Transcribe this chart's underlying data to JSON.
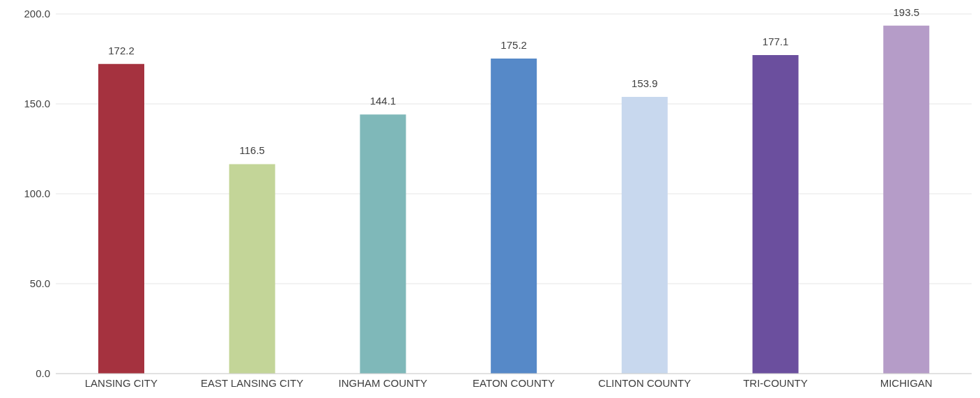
{
  "chart_data": {
    "type": "bar",
    "categories": [
      "LANSING CITY",
      "EAST LANSING CITY",
      "INGHAM COUNTY",
      "EATON COUNTY",
      "CLINTON COUNTY",
      "TRI-COUNTY",
      "MICHIGAN"
    ],
    "values": [
      172.2,
      116.5,
      144.1,
      175.2,
      153.9,
      177.1,
      193.5
    ],
    "colors": [
      "#a5323f",
      "#c3d598",
      "#7fb8b9",
      "#5689c8",
      "#c8d8ee",
      "#6b4f9e",
      "#b59cc8"
    ],
    "ylim": [
      0,
      200
    ],
    "yticks": [
      {
        "value": 0,
        "label": "0.0"
      },
      {
        "value": 50,
        "label": "50.0"
      },
      {
        "value": 100,
        "label": "100.0"
      },
      {
        "value": 150,
        "label": "150.0"
      },
      {
        "value": 200,
        "label": "200.0"
      }
    ],
    "grid": "y",
    "data_labels": true
  }
}
